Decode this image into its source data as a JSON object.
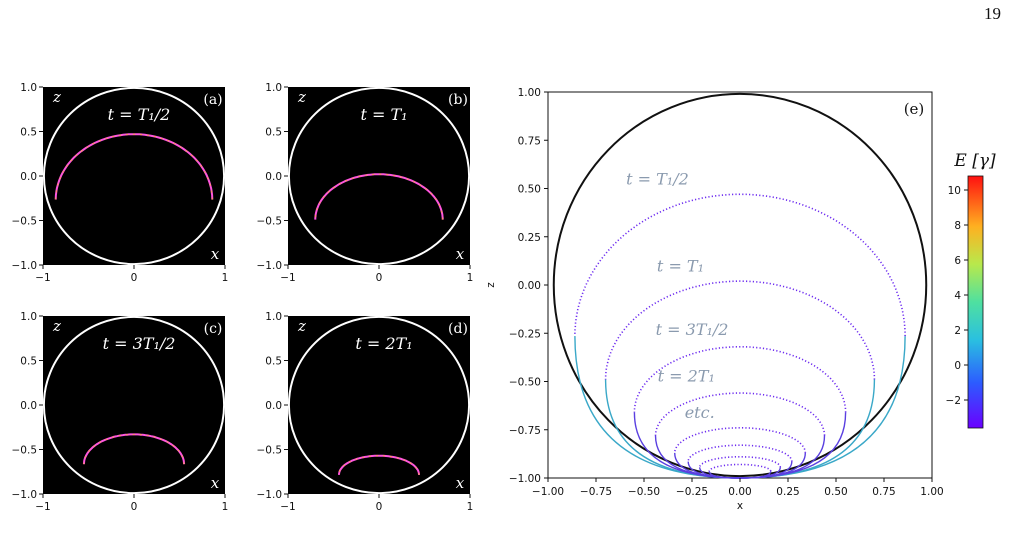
{
  "page_number": "19",
  "small_panels": [
    {
      "tag": "(a)",
      "label": "t = T₁/2",
      "z0": 0.47,
      "a": 0.86,
      "thick": 0.2
    },
    {
      "tag": "(b)",
      "label": "t = T₁",
      "z0": 0.02,
      "a": 0.7,
      "thick": 0.1
    },
    {
      "tag": "(c)",
      "label": "t = 3T₁/2",
      "z0": -0.33,
      "a": 0.55,
      "thick": 0.06
    },
    {
      "tag": "(d)",
      "label": "t = 2T₁",
      "z0": -0.57,
      "a": 0.44,
      "thick": 0.05
    }
  ],
  "small_axes": {
    "xlabel": "x",
    "zlabel": "z",
    "xticks": [
      "−1",
      "0",
      "1"
    ],
    "yticks": [
      "1.0",
      "0.5",
      "0.0",
      "−0.5",
      "−1.0"
    ]
  },
  "big_panel": {
    "tag": "(e)",
    "xlabel": "x",
    "ylabel": "z",
    "xticks": [
      "−1.00",
      "−0.75",
      "−0.50",
      "−0.25",
      "0.00",
      "0.25",
      "0.50",
      "0.75",
      "1.00"
    ],
    "yticks": [
      "1.00",
      "0.75",
      "0.50",
      "0.25",
      "0.00",
      "−0.25",
      "−0.50",
      "−0.75",
      "−1.00"
    ],
    "annotations": [
      "t = T₁/2",
      "t = T₁",
      "t = 3T₁/2",
      "t = 2T₁",
      "etc."
    ],
    "colorbar_label": "E [γ]",
    "colorbar_ticks": [
      "10",
      "8",
      "6",
      "4",
      "2",
      "0",
      "−2"
    ]
  },
  "chart_data": {
    "type": "line",
    "title": "",
    "xlabel": "x",
    "ylabel": "z",
    "xlim": [
      -1.0,
      1.0
    ],
    "ylim": [
      -1.0,
      1.0
    ],
    "colorbar": {
      "label": "E [γ]",
      "range": [
        -3.6,
        10.8
      ]
    },
    "series": [
      {
        "top_z": 0.47,
        "half_width": 0.86,
        "bottom_z": -1.0
      },
      {
        "top_z": 0.02,
        "half_width": 0.7,
        "bottom_z": -1.0
      },
      {
        "top_z": -0.32,
        "half_width": 0.55,
        "bottom_z": -1.0
      },
      {
        "top_z": -0.56,
        "half_width": 0.44,
        "bottom_z": -1.0
      },
      {
        "top_z": -0.74,
        "half_width": 0.34,
        "bottom_z": -1.0
      },
      {
        "top_z": -0.83,
        "half_width": 0.27,
        "bottom_z": -1.0
      },
      {
        "top_z": -0.89,
        "half_width": 0.21,
        "bottom_z": -1.0
      },
      {
        "top_z": -0.93,
        "half_width": 0.16,
        "bottom_z": -1.0
      }
    ]
  }
}
